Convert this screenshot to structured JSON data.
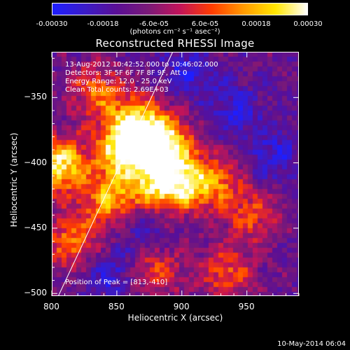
{
  "colorbar": {
    "ticks": [
      "-0.00030",
      "-0.00018",
      "-6.0e-05",
      "6.0e-05",
      "0.00018",
      "0.00030"
    ],
    "tick_values": [
      -0.0003,
      -0.00018,
      -6e-05,
      6e-05,
      0.00018,
      0.0003
    ],
    "unit_label": "(photons cm⁻² s⁻¹ asec⁻²)",
    "colors": [
      "#1e1eff",
      "#3a1cc8",
      "#5a0f96",
      "#7a1a78",
      "#c2145a",
      "#ff3c00",
      "#ff9a00",
      "#ffe600",
      "#ffffff"
    ]
  },
  "chart_data": {
    "type": "heatmap",
    "title": "Reconstructed RHESSI Image",
    "xlabel": "Heliocentric X (arcsec)",
    "ylabel": "Heliocentric Y (arcsec)",
    "xlim": [
      800,
      990
    ],
    "ylim": [
      -502,
      -315
    ],
    "x_ticks": [
      800,
      850,
      900,
      950
    ],
    "y_ticks": [
      -350,
      -400,
      -450,
      -500
    ],
    "value_range": [
      -0.0003,
      0.0003
    ],
    "annotations": [
      "13-Aug-2012 10:42:52.000 to 10:46:02.000",
      "Detectors: 3F 5F 6F 7F 8F 9F, Att 0",
      "Energy Range: 12.0 - 25.0 keV",
      "Clean     Total counts: 2.69E+03"
    ],
    "peak_label": "Position of Peak = [813,-410]",
    "limb_line": [
      [
        805,
        -502
      ],
      [
        893,
        -315
      ]
    ],
    "bright_regions": [
      {
        "x": 806,
        "y": -402,
        "intensity": 0.95
      },
      {
        "x": 855,
        "y": -390,
        "intensity": 0.9
      },
      {
        "x": 886,
        "y": -386,
        "intensity": 1.0
      },
      {
        "x": 865,
        "y": -370,
        "intensity": 0.75
      },
      {
        "x": 880,
        "y": -418,
        "intensity": 0.7
      },
      {
        "x": 845,
        "y": -428,
        "intensity": 0.7
      },
      {
        "x": 815,
        "y": -460,
        "intensity": 0.6
      },
      {
        "x": 900,
        "y": -415,
        "intensity": 0.65
      },
      {
        "x": 925,
        "y": -415,
        "intensity": 0.55
      },
      {
        "x": 835,
        "y": -345,
        "intensity": 0.55
      },
      {
        "x": 955,
        "y": -440,
        "intensity": 0.45
      },
      {
        "x": 935,
        "y": -485,
        "intensity": 0.5
      },
      {
        "x": 880,
        "y": -482,
        "intensity": 0.45
      }
    ],
    "dark_regions": [
      {
        "x": 905,
        "y": -330
      },
      {
        "x": 940,
        "y": -360
      },
      {
        "x": 870,
        "y": -448
      },
      {
        "x": 970,
        "y": -395
      },
      {
        "x": 845,
        "y": -485
      }
    ]
  },
  "footer": {
    "timestamp": "10-May-2014 06:04"
  }
}
